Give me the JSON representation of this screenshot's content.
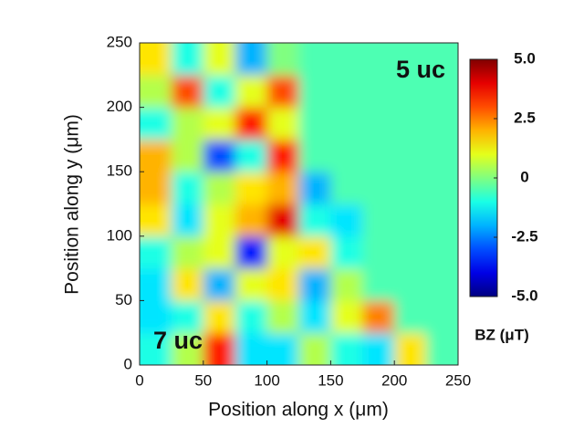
{
  "chart_data": {
    "type": "heatmap",
    "xlabel": "Position along x (μm)",
    "ylabel": "Position along y (μm)",
    "x": [
      12.5,
      37.5,
      62.5,
      87.5,
      112.5,
      137.5,
      162.5,
      187.5,
      212.5,
      237.5
    ],
    "y": [
      12.5,
      37.5,
      62.5,
      87.5,
      112.5,
      137.5,
      162.5,
      187.5,
      212.5,
      237.5
    ],
    "z": [
      [
        -1,
        0.5,
        3.5,
        -1.5,
        -1.5,
        0.5,
        -1,
        -1.5,
        1.5,
        -0.5
      ],
      [
        -1.5,
        -1,
        1.5,
        -1,
        0.5,
        -1.5,
        1,
        2.5,
        -0.5,
        -0.5
      ],
      [
        -1.5,
        1.5,
        -2,
        1,
        1.5,
        -2,
        0.5,
        -0.5,
        -0.5,
        -0.5
      ],
      [
        -1,
        0.5,
        1,
        -3.5,
        1,
        1.5,
        -1,
        -0.5,
        -0.5,
        -0.5
      ],
      [
        1.5,
        -1.5,
        1,
        2,
        4,
        -1,
        -1.5,
        -0.5,
        -0.5,
        -0.5
      ],
      [
        2,
        -1,
        0.5,
        1.5,
        2,
        -2,
        -0.5,
        -0.5,
        -0.5,
        -0.5
      ],
      [
        2,
        0.5,
        -3,
        -1,
        3.5,
        -0.5,
        -0.5,
        -0.5,
        -0.5,
        -0.5
      ],
      [
        -1,
        0.5,
        1,
        3.5,
        1,
        -0.5,
        -0.5,
        -0.5,
        -0.5,
        -0.5
      ],
      [
        0.5,
        3,
        -1,
        1,
        3,
        -0.5,
        -0.5,
        -0.5,
        -0.5,
        -0.5
      ],
      [
        1.5,
        -1,
        1,
        -2,
        0,
        -0.5,
        -0.5,
        -0.5,
        -0.5,
        -0.5
      ]
    ],
    "xlim": [
      0,
      250
    ],
    "ylim": [
      0,
      250
    ],
    "xticks": [
      0,
      50,
      100,
      150,
      200,
      250
    ],
    "yticks": [
      0,
      50,
      100,
      150,
      200,
      250
    ],
    "zlim": [
      -5,
      5
    ],
    "zticks": [
      {
        "value": -5,
        "label": "-5.0"
      },
      -2.5,
      0,
      2.5,
      {
        "value": 5,
        "label": "5.0"
      }
    ],
    "colorbar_label": "BZ (μT)",
    "colormap": "jet",
    "annotations": [
      "5 uc",
      "7 uc"
    ]
  }
}
